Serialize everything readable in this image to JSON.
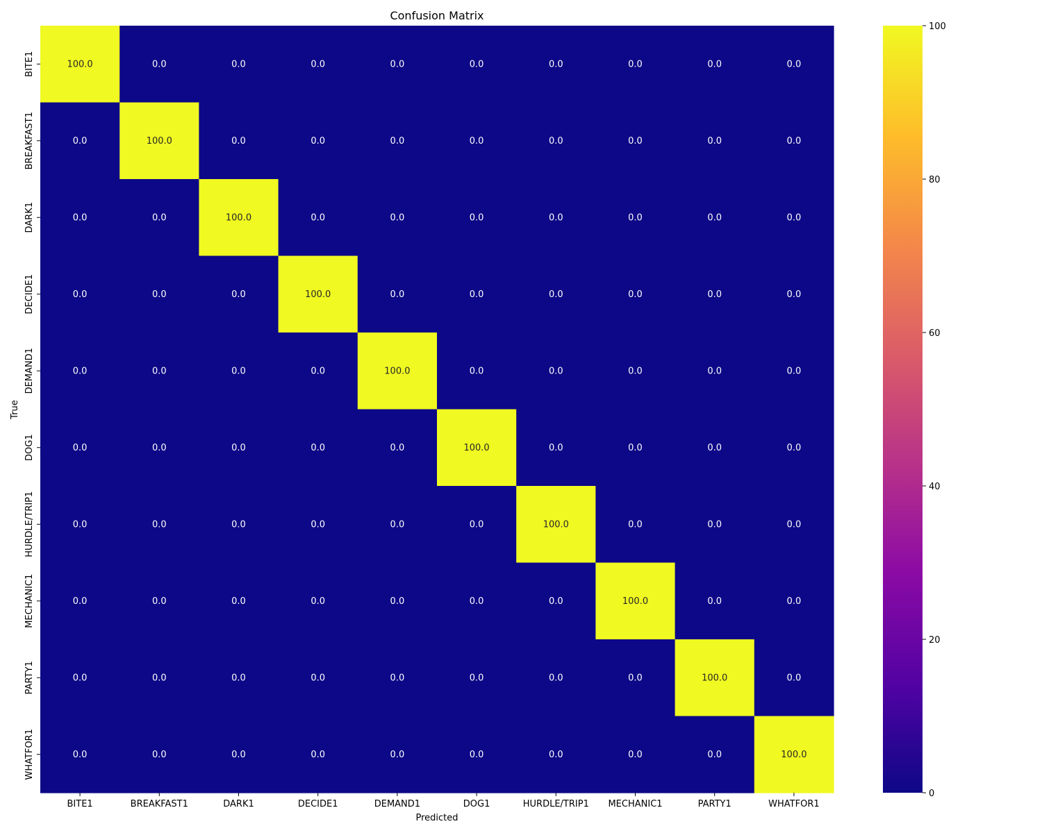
{
  "chart_data": {
    "type": "heatmap",
    "title": "Confusion Matrix",
    "xlabel": "Predicted",
    "ylabel": "True",
    "x_categories": [
      "BITE1",
      "BREAKFAST1",
      "DARK1",
      "DECIDE1",
      "DEMAND1",
      "DOG1",
      "HURDLE/TRIP1",
      "MECHANIC1",
      "PARTY1",
      "WHATFOR1"
    ],
    "y_categories": [
      "BITE1",
      "BREAKFAST1",
      "DARK1",
      "DECIDE1",
      "DEMAND1",
      "DOG1",
      "HURDLE/TRIP1",
      "MECHANIC1",
      "PARTY1",
      "WHATFOR1"
    ],
    "values": [
      [
        100.0,
        0.0,
        0.0,
        0.0,
        0.0,
        0.0,
        0.0,
        0.0,
        0.0,
        0.0
      ],
      [
        0.0,
        100.0,
        0.0,
        0.0,
        0.0,
        0.0,
        0.0,
        0.0,
        0.0,
        0.0
      ],
      [
        0.0,
        0.0,
        100.0,
        0.0,
        0.0,
        0.0,
        0.0,
        0.0,
        0.0,
        0.0
      ],
      [
        0.0,
        0.0,
        0.0,
        100.0,
        0.0,
        0.0,
        0.0,
        0.0,
        0.0,
        0.0
      ],
      [
        0.0,
        0.0,
        0.0,
        0.0,
        100.0,
        0.0,
        0.0,
        0.0,
        0.0,
        0.0
      ],
      [
        0.0,
        0.0,
        0.0,
        0.0,
        0.0,
        100.0,
        0.0,
        0.0,
        0.0,
        0.0
      ],
      [
        0.0,
        0.0,
        0.0,
        0.0,
        0.0,
        0.0,
        100.0,
        0.0,
        0.0,
        0.0
      ],
      [
        0.0,
        0.0,
        0.0,
        0.0,
        0.0,
        0.0,
        0.0,
        100.0,
        0.0,
        0.0
      ],
      [
        0.0,
        0.0,
        0.0,
        0.0,
        0.0,
        0.0,
        0.0,
        0.0,
        100.0,
        0.0
      ],
      [
        0.0,
        0.0,
        0.0,
        0.0,
        0.0,
        0.0,
        0.0,
        0.0,
        0.0,
        100.0
      ]
    ],
    "value_format": "0.0",
    "colormap": "plasma",
    "colormap_stops": [
      "#0d0887",
      "#5302a3",
      "#8b0aa5",
      "#b83289",
      "#db5c68",
      "#f48849",
      "#febd2a",
      "#f0f921"
    ],
    "colorbar_range": [
      0,
      100
    ],
    "colorbar_ticks": [
      0,
      20,
      40,
      60,
      80,
      100
    ],
    "annotation_colors": {
      "on_dark": "#ffffff",
      "on_light": "#262626"
    },
    "grid": false,
    "legend": "colorbar-right"
  }
}
